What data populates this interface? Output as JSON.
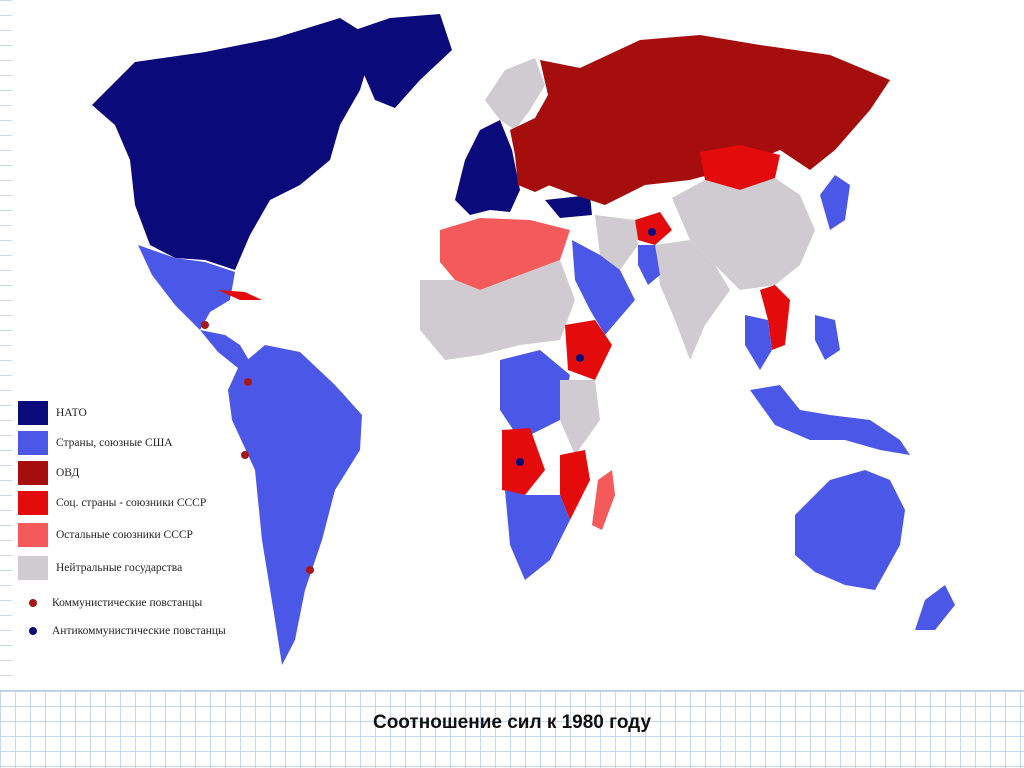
{
  "caption": "Соотношение сил к 1980 году",
  "colors": {
    "nato": "#0a0a7a",
    "us_allies": "#4b57e6",
    "ovd": "#a60d0d",
    "socialist_ussr_allies": "#e30b0b",
    "other_ussr_allies": "#f45a5a",
    "neutral": "#cfcbd0",
    "communist_dot": "#a61818",
    "anticommunist_dot": "#0a0a7a"
  },
  "legend": [
    {
      "label": "НАТО",
      "color": "#0a0a7a"
    },
    {
      "label": "Страны, союзные США",
      "color": "#4b57e6"
    },
    {
      "label": "ОВД",
      "color": "#a60d0d"
    },
    {
      "label": "Соц. страны - союзники СССР",
      "color": "#e30b0b"
    },
    {
      "label": "Остальные союзники СССР",
      "color": "#f45a5a"
    },
    {
      "label": "Нейтральные государства",
      "color": "#cfcbd0"
    },
    {
      "label": "Коммунистические повстанцы",
      "color": "#a61818"
    },
    {
      "label": "Антикоммунистические повстанцы",
      "color": "#0a0a7a"
    }
  ]
}
